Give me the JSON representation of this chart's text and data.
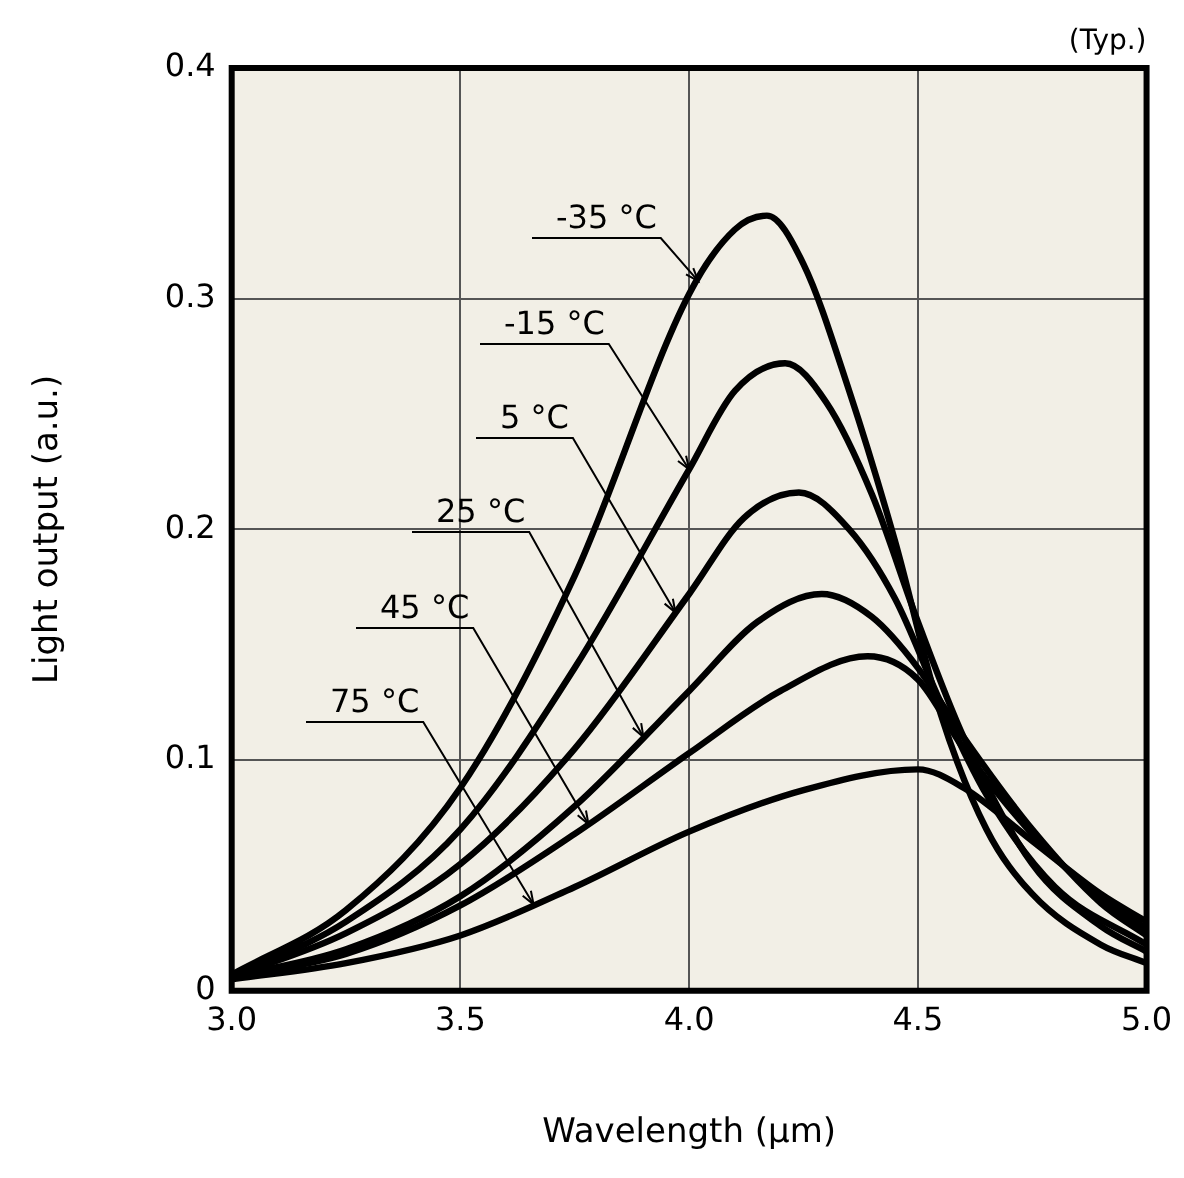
{
  "chart_data": {
    "type": "line",
    "xlabel": "Wavelength (µm)",
    "ylabel": "Light output (a.u.)",
    "annotations": [
      "(Typ.)"
    ],
    "xlim": [
      3.0,
      5.0
    ],
    "xticks": [
      {
        "value": 3.0,
        "label": "3.0"
      },
      {
        "value": 3.5,
        "label": "3.5"
      },
      {
        "value": 4.0,
        "label": "4.0"
      },
      {
        "value": 4.5,
        "label": "4.5"
      },
      {
        "value": 5.0,
        "label": "5.0"
      }
    ],
    "ylim": [
      0,
      0.4
    ],
    "yticks": [
      0,
      0.1,
      0.2,
      0.3,
      0.4
    ],
    "grid": true,
    "legend": false,
    "marker": "none",
    "line_style": "solid",
    "series": [
      {
        "name": "-35 °C",
        "color": "#000000",
        "x": [
          3.0,
          3.25,
          3.5,
          3.75,
          4.0,
          4.1,
          4.17,
          4.25,
          4.35,
          4.45,
          4.55,
          4.65,
          4.75,
          4.9,
          5.0
        ],
        "values": [
          0.007,
          0.035,
          0.088,
          0.18,
          0.302,
          0.33,
          0.336,
          0.315,
          0.26,
          0.195,
          0.12,
          0.07,
          0.042,
          0.02,
          0.012
        ]
      },
      {
        "name": "-15 °C",
        "color": "#000000",
        "x": [
          3.0,
          3.25,
          3.5,
          3.75,
          4.0,
          4.1,
          4.21,
          4.3,
          4.4,
          4.5,
          4.6,
          4.75,
          4.9,
          5.0
        ],
        "values": [
          0.006,
          0.03,
          0.07,
          0.14,
          0.226,
          0.26,
          0.272,
          0.255,
          0.215,
          0.16,
          0.11,
          0.055,
          0.028,
          0.017
        ]
      },
      {
        "name": "5 °C",
        "color": "#000000",
        "x": [
          3.0,
          3.25,
          3.5,
          3.75,
          4.0,
          4.12,
          4.24,
          4.35,
          4.45,
          4.55,
          4.65,
          4.8,
          5.0
        ],
        "values": [
          0.006,
          0.025,
          0.055,
          0.105,
          0.172,
          0.205,
          0.216,
          0.2,
          0.17,
          0.125,
          0.085,
          0.045,
          0.02
        ]
      },
      {
        "name": "25 °C",
        "color": "#000000",
        "x": [
          3.0,
          3.25,
          3.5,
          3.75,
          4.0,
          4.15,
          4.29,
          4.4,
          4.5,
          4.6,
          4.75,
          4.9,
          5.0
        ],
        "values": [
          0.006,
          0.018,
          0.041,
          0.08,
          0.13,
          0.16,
          0.172,
          0.162,
          0.14,
          0.11,
          0.07,
          0.038,
          0.024
        ]
      },
      {
        "name": "45 °C",
        "color": "#000000",
        "x": [
          3.0,
          3.25,
          3.5,
          3.75,
          4.0,
          4.2,
          4.39,
          4.5,
          4.6,
          4.75,
          4.9,
          5.0
        ],
        "values": [
          0.006,
          0.016,
          0.037,
          0.068,
          0.103,
          0.13,
          0.145,
          0.135,
          0.105,
          0.068,
          0.04,
          0.027
        ]
      },
      {
        "name": "75 °C",
        "color": "#000000",
        "x": [
          3.0,
          3.25,
          3.5,
          3.75,
          4.0,
          4.25,
          4.5,
          4.6,
          4.75,
          4.9,
          5.0
        ],
        "values": [
          0.005,
          0.012,
          0.024,
          0.045,
          0.069,
          0.087,
          0.096,
          0.088,
          0.065,
          0.042,
          0.03
        ]
      }
    ]
  }
}
